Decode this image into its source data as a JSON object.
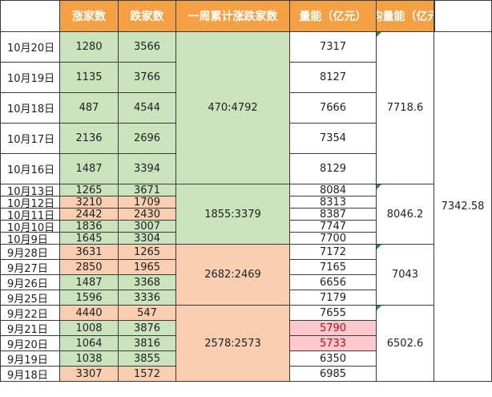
{
  "headers": [
    "",
    "涨家数",
    "跌家数",
    "一周累计涨跌家数",
    "量能（亿元）",
    "平均量能（亿元）",
    ""
  ],
  "rows": [
    {
      "date": "10月20日",
      "up": "1280",
      "down": "3566",
      "up_color": "green",
      "down_color": "green",
      "vol": "7317",
      "vol_color": "white"
    },
    {
      "date": "10月19日",
      "up": "1135",
      "down": "3766",
      "up_color": "green",
      "down_color": "green",
      "vol": "8127",
      "vol_color": "white"
    },
    {
      "date": "10月18日",
      "up": "487",
      "down": "4544",
      "up_color": "green",
      "down_color": "green",
      "vol": "7666",
      "vol_color": "white"
    },
    {
      "date": "10月17日",
      "up": "2136",
      "down": "2696",
      "up_color": "green",
      "down_color": "green",
      "vol": "7354",
      "vol_color": "white"
    },
    {
      "date": "10月16日",
      "up": "1487",
      "down": "3394",
      "up_color": "green",
      "down_color": "green",
      "vol": "8129",
      "vol_color": "white"
    },
    {
      "date": "10月13日",
      "up": "1265",
      "down": "3671",
      "up_color": "green",
      "down_color": "green",
      "vol": "8084",
      "vol_color": "white"
    },
    {
      "date": "10月12日",
      "up": "3210",
      "down": "1709",
      "up_color": "orange",
      "down_color": "orange",
      "vol": "8313",
      "vol_color": "white"
    },
    {
      "date": "10月11日",
      "up": "2442",
      "down": "2430",
      "up_color": "orange",
      "down_color": "orange",
      "vol": "8387",
      "vol_color": "white"
    },
    {
      "date": "10月10日",
      "up": "1836",
      "down": "3007",
      "up_color": "green",
      "down_color": "green",
      "vol": "7747",
      "vol_color": "white"
    },
    {
      "date": "10月9日",
      "up": "1645",
      "down": "3304",
      "up_color": "green",
      "down_color": "green",
      "vol": "7700",
      "vol_color": "white"
    },
    {
      "date": "9月28日",
      "up": "3631",
      "down": "1265",
      "up_color": "orange",
      "down_color": "orange",
      "vol": "7172",
      "vol_color": "white"
    },
    {
      "date": "9月27日",
      "up": "2850",
      "down": "1965",
      "up_color": "orange",
      "down_color": "orange",
      "vol": "7165",
      "vol_color": "white"
    },
    {
      "date": "9月26日",
      "up": "1487",
      "down": "3368",
      "up_color": "green",
      "down_color": "green",
      "vol": "6656",
      "vol_color": "white"
    },
    {
      "date": "9月25日",
      "up": "1596",
      "down": "3336",
      "up_color": "green",
      "down_color": "green",
      "vol": "7179",
      "vol_color": "white"
    },
    {
      "date": "9月22日",
      "up": "4440",
      "down": "547",
      "up_color": "orange",
      "down_color": "orange",
      "vol": "7655",
      "vol_color": "white"
    },
    {
      "date": "9月21日",
      "up": "1008",
      "down": "3876",
      "up_color": "green",
      "down_color": "green",
      "vol": "5790",
      "vol_color": "pink"
    },
    {
      "date": "9月20日",
      "up": "1064",
      "down": "3816",
      "up_color": "green",
      "down_color": "green",
      "vol": "5733",
      "vol_color": "pink"
    },
    {
      "date": "9月19日",
      "up": "1038",
      "down": "3855",
      "up_color": "green",
      "down_color": "green",
      "vol": "6350",
      "vol_color": "white"
    },
    {
      "date": "9月18日",
      "up": "3307",
      "down": "1572",
      "up_color": "orange",
      "down_color": "orange",
      "vol": "6985",
      "vol_color": "white"
    }
  ],
  "weeks": [
    {
      "rows": [
        0,
        4
      ],
      "ratio": "470:4792",
      "ratio_color": "green",
      "avg": "7718.6"
    },
    {
      "rows": [
        5,
        9
      ],
      "ratio": "1855:3379",
      "ratio_color": "green",
      "avg": "8046.2"
    },
    {
      "rows": [
        10,
        13
      ],
      "ratio": "2682:2469",
      "ratio_color": "orange",
      "avg": "7043"
    },
    {
      "rows": [
        14,
        18
      ],
      "ratio": "2578:2573",
      "ratio_color": "orange",
      "avg": "6502.6"
    }
  ],
  "overall_avg": "7342.58",
  "colors": {
    "header": "#f4a043",
    "green": "#c9e3bd",
    "orange": "#f9cdb0",
    "pink": "#ffc7ce",
    "pink_text": "#b3131b"
  }
}
